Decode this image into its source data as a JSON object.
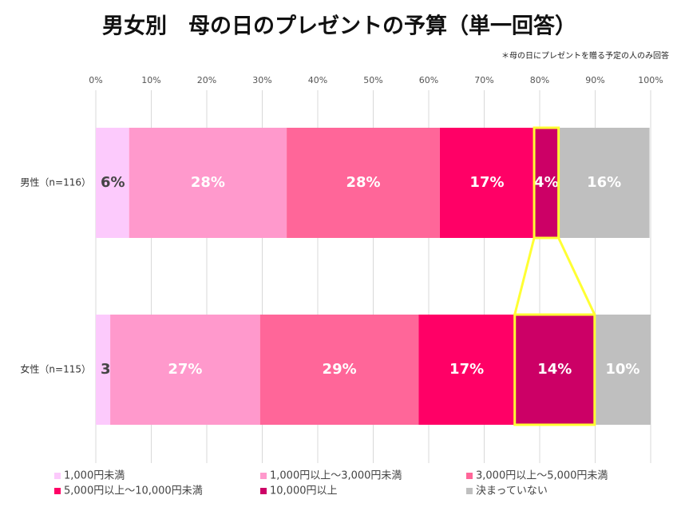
{
  "chart_data": {
    "type": "bar",
    "orientation": "horizontal",
    "stacked": true,
    "title": "男女別　母の日のプレゼントの予算（単一回答）",
    "subtitle": "＊母の日にプレゼントを贈る予定の人のみ回答",
    "categories": [
      "男性（n=116）",
      "女性（n=115）"
    ],
    "series": [
      {
        "name": "1,000円未満",
        "color": "#fccafc",
        "values": [
          6.0,
          2.6
        ],
        "value_labels": [
          "6%",
          "3%"
        ]
      },
      {
        "name": "1,000円以上～3,000円未満",
        "color": "#ff99cc",
        "values": [
          28.4,
          27.0
        ],
        "value_labels": [
          "28%",
          "27%"
        ]
      },
      {
        "name": "3,000円以上～5,000円未満",
        "color": "#ff6699",
        "values": [
          27.6,
          28.6
        ],
        "value_labels": [
          "28%",
          "29%"
        ]
      },
      {
        "name": "5,000円以上～10,000円未満",
        "color": "#ff0066",
        "values": [
          17.0,
          17.3
        ],
        "value_labels": [
          "17%",
          "17%"
        ]
      },
      {
        "name": "10,000円以上",
        "color": "#cc0066",
        "values": [
          4.4,
          14.4
        ],
        "value_labels": [
          "4%",
          "14%"
        ]
      },
      {
        "name": "決まっていない",
        "color": "#bfbfbf",
        "values": [
          16.4,
          10.1
        ],
        "value_labels": [
          "16%",
          "10%"
        ]
      }
    ],
    "xlim": [
      0,
      100
    ],
    "xticks": [
      {
        "value": 0,
        "label": "0%"
      },
      {
        "value": 10,
        "label": "10%"
      },
      {
        "value": 20,
        "label": "20%"
      },
      {
        "value": 30,
        "label": "30%"
      },
      {
        "value": 40,
        "label": "40%"
      },
      {
        "value": 50,
        "label": "50%"
      },
      {
        "value": 60,
        "label": "60%"
      },
      {
        "value": 70,
        "label": "70%"
      },
      {
        "value": 80,
        "label": "80%"
      },
      {
        "value": 90,
        "label": "90%"
      },
      {
        "value": 100,
        "label": "100%"
      }
    ],
    "grid": true,
    "legend": "bottom"
  }
}
